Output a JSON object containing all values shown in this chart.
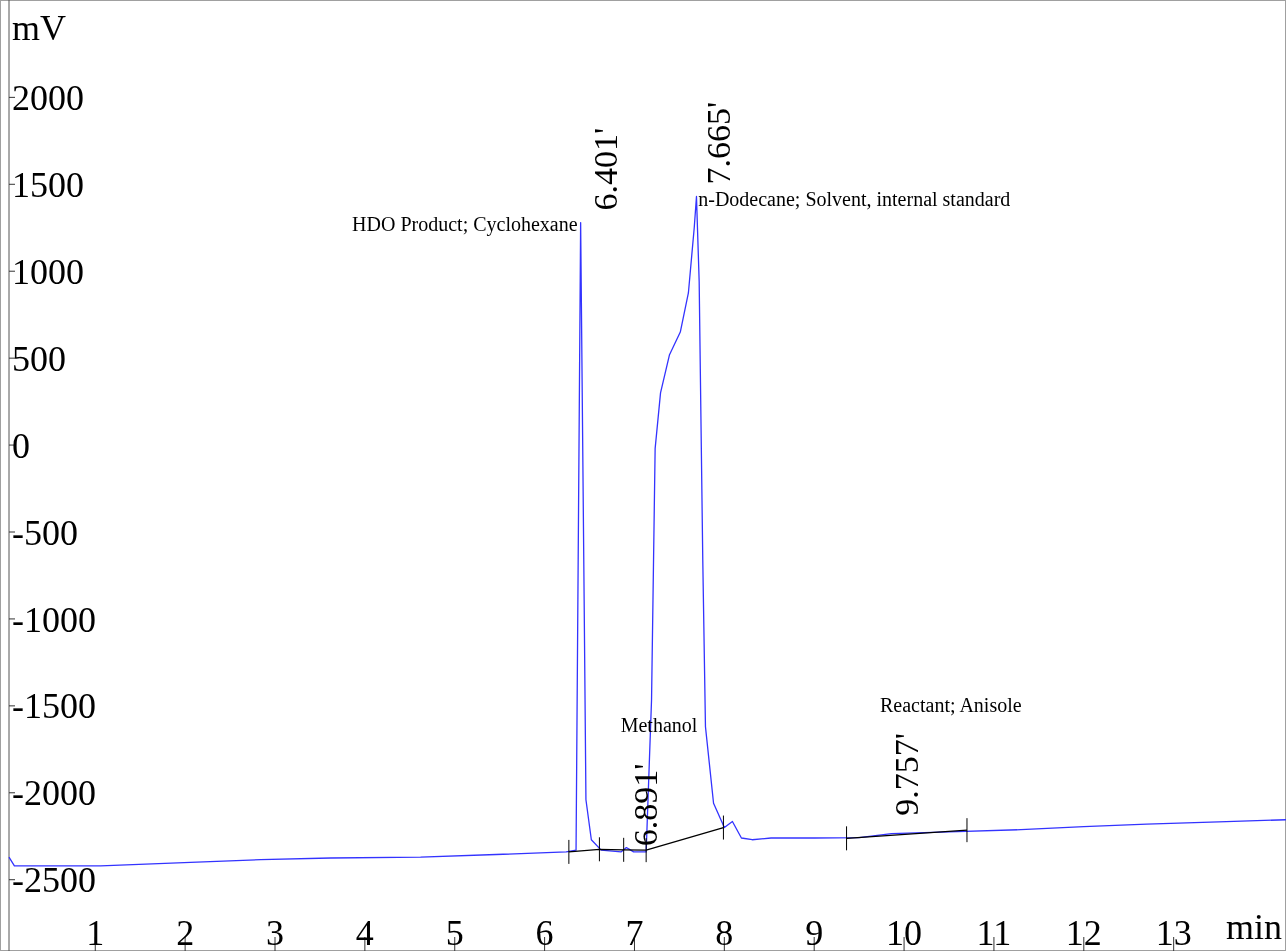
{
  "chart_data": {
    "type": "line",
    "xlabel": "min",
    "ylabel": "mV",
    "xlim": [
      0.04,
      14.25
    ],
    "xticks": [
      1,
      2,
      3,
      4,
      5,
      6,
      7,
      8,
      9,
      10,
      11,
      12,
      13
    ],
    "ylim": [
      -2910,
      2560
    ],
    "yticks": [
      -2500,
      -2000,
      -1500,
      -1000,
      -500,
      0,
      500,
      1000,
      1500,
      2000
    ],
    "grid": false,
    "series": [
      {
        "color": "#3333ff",
        "marker": "none",
        "x": [
          0.04,
          0.1,
          1.06,
          2.06,
          2.84,
          3.62,
          4.62,
          5.46,
          6.24,
          6.35,
          6.401,
          6.44,
          6.46,
          6.52,
          6.63,
          6.85,
          6.91,
          6.99,
          7.13,
          7.19,
          7.23,
          7.29,
          7.39,
          7.51,
          7.6,
          7.665,
          7.69,
          7.72,
          7.76,
          7.79,
          7.88,
          8.0,
          8.09,
          8.19,
          8.31,
          8.52,
          9.0,
          9.5,
          9.86,
          10.5,
          11.3,
          12.0,
          12.7,
          13.5,
          14.25
        ],
        "values": [
          -2370,
          -2420,
          -2420,
          -2400,
          -2385,
          -2375,
          -2370,
          -2355,
          -2340,
          -2330,
          1280,
          -890,
          -2040,
          -2270,
          -2330,
          -2340,
          -2315,
          -2340,
          -2340,
          -1465,
          -20,
          300,
          520,
          650,
          875,
          1250,
          1430,
          940,
          -660,
          -1620,
          -2060,
          -2200,
          -2165,
          -2260,
          -2270,
          -2260,
          -2260,
          -2258,
          -2235,
          -2225,
          -2212,
          -2195,
          -2180,
          -2167,
          -2155
        ]
      },
      {
        "color": "#000000",
        "x": [
          6.27,
          6.61,
          6.88,
          7.13,
          7.99
        ],
        "values": [
          -2340,
          -2325,
          -2328,
          -2330,
          -2200
        ]
      },
      {
        "color": "#000000",
        "x": [
          9.36,
          10.7
        ],
        "values": [
          -2262,
          -2215
        ]
      }
    ],
    "annotations": [
      {
        "text": "6.401'",
        "x": 6.401,
        "y": 1280
      },
      {
        "text": "HDO Product; Cyclohexane",
        "x": 6.401,
        "y": 1280
      },
      {
        "text": "7.665'",
        "x": 7.665,
        "y": 1430
      },
      {
        "text": "n-Dodecane; Solvent, internal standard",
        "x": 7.665,
        "y": 1430
      },
      {
        "text": "6.891'",
        "x": 6.891,
        "y": -2330
      },
      "Methanol",
      {
        "text": "9.757'",
        "x": 9.757,
        "y": -2235
      },
      "Reactant; Anisole"
    ]
  }
}
